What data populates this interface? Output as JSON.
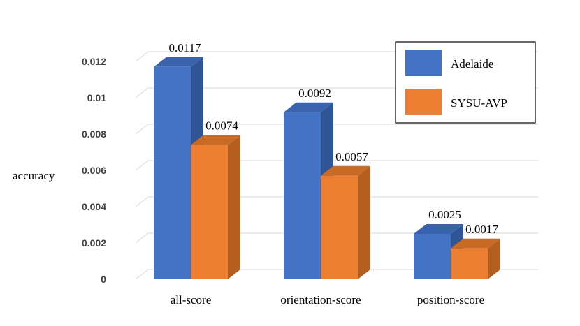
{
  "chart_data": {
    "type": "bar",
    "categories": [
      "all-score",
      "orientation-score",
      "position-score"
    ],
    "series": [
      {
        "name": "Adelaide",
        "values": [
          0.0117,
          0.0092,
          0.0025
        ],
        "labels": [
          "0.0117",
          "0.0092",
          "0.0025"
        ],
        "color": "#4472c4",
        "side_color": "#2f5597",
        "top_color": "#3a63ae"
      },
      {
        "name": "SYSU-AVP",
        "values": [
          0.0074,
          0.0057,
          0.0017
        ],
        "labels": [
          "0.0074",
          "0.0057",
          "0.0017"
        ],
        "color": "#ed7d31",
        "side_color": "#b45e1f",
        "top_color": "#c96a25"
      }
    ],
    "title": "",
    "xlabel": "",
    "ylabel": "accuracy",
    "ylim": [
      0,
      0.012
    ],
    "yticks": [
      0,
      0.002,
      0.004,
      0.006,
      0.008,
      0.01,
      0.012
    ],
    "ytick_labels": [
      "0",
      "0.002",
      "0.004",
      "0.006",
      "0.008",
      "0.01",
      "0.012"
    ],
    "grid": true,
    "legend_position": "top-right"
  }
}
